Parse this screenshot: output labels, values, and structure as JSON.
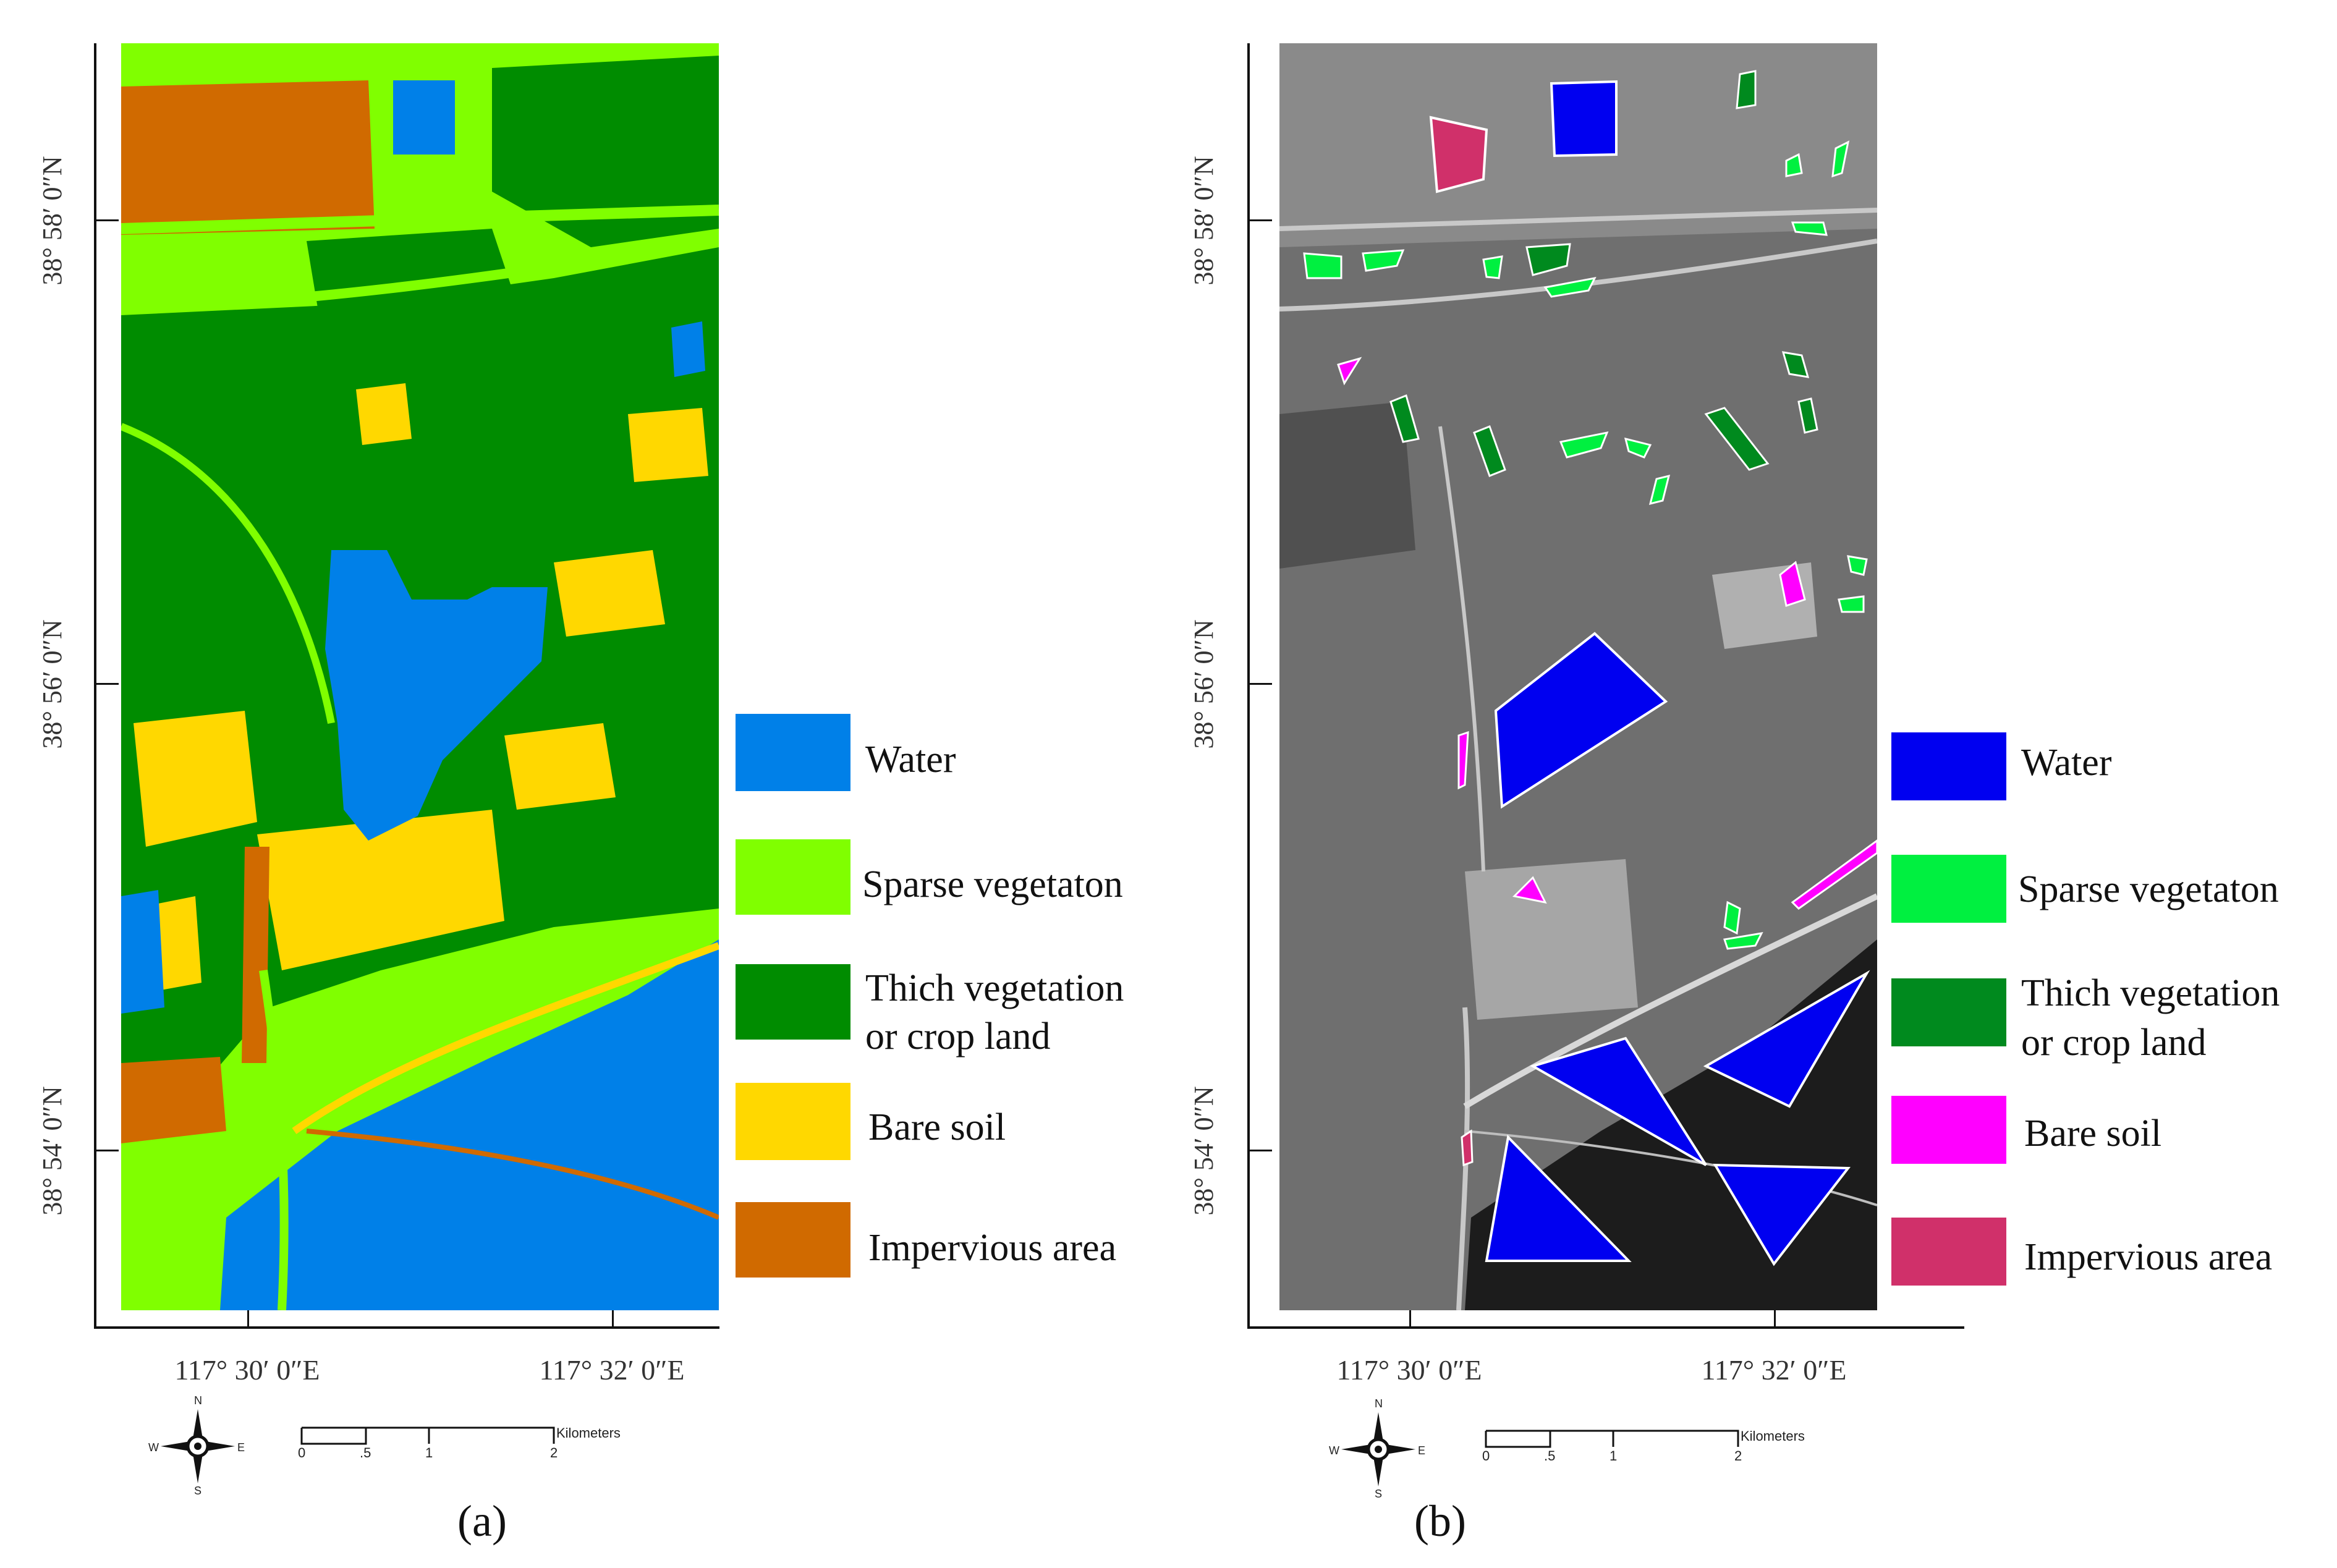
{
  "panels": [
    {
      "caption": "(a)",
      "lat_labels": [
        "38° 58′ 0″N",
        "38° 56′ 0″N",
        "38° 54′ 0″N"
      ],
      "lon_labels": [
        "117° 30′ 0″E",
        "117° 32′ 0″E"
      ],
      "legend": [
        {
          "label": "Water",
          "color": "#0080E8"
        },
        {
          "label": "Sparse vegetaton",
          "color": "#80FF00"
        },
        {
          "label": "Thich vegetation",
          "label2": "or crop land",
          "color": "#008C00"
        },
        {
          "label": "Bare soil",
          "color": "#FFD800"
        },
        {
          "label": "Impervious area",
          "color": "#D06A00"
        }
      ]
    },
    {
      "caption": "(b)",
      "lat_labels": [
        "38° 58′ 0″N",
        "38° 56′ 0″N",
        "38° 54′ 0″N"
      ],
      "lon_labels": [
        "117° 30′ 0″E",
        "117° 32′ 0″E"
      ],
      "legend": [
        {
          "label": "Water",
          "color": "#0000F0"
        },
        {
          "label": "Sparse vegetaton",
          "color": "#00F040"
        },
        {
          "label": "Thich vegetation",
          "label2": "or crop land",
          "color": "#008A1E"
        },
        {
          "label": "Bare soil",
          "color": "#FF00FF"
        },
        {
          "label": "Impervious area",
          "color": "#D0306A"
        }
      ]
    }
  ],
  "compass": {
    "n": "N",
    "s": "S",
    "e": "E",
    "w": "W"
  },
  "scale": {
    "unit": "Kilometers",
    "ticks": [
      "0",
      ".5",
      "1",
      "2"
    ]
  }
}
